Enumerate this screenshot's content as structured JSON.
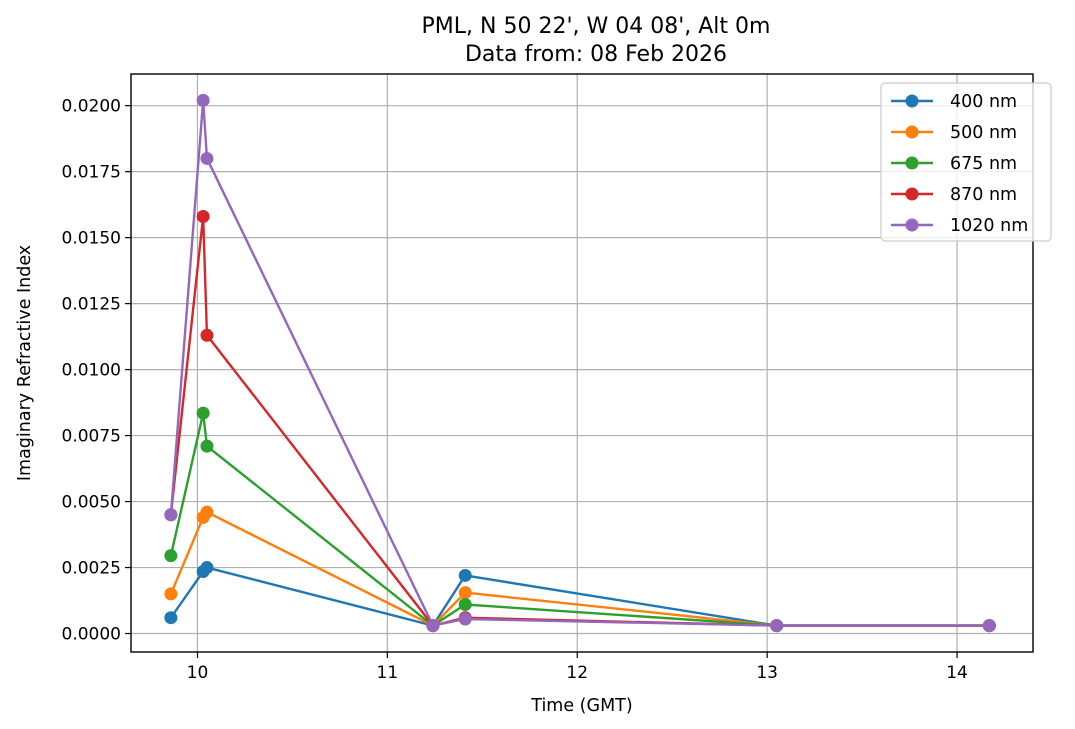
{
  "chart_data": {
    "type": "line",
    "title_line1": "PML, N 50 22', W 04 08', Alt 0m",
    "title_line2": "Data from: 08 Feb 2026",
    "xlabel": "Time (GMT)",
    "ylabel": "Imaginary Refractive Index",
    "xlim": [
      9.65,
      14.4
    ],
    "ylim": [
      -0.0007,
      0.0212
    ],
    "xticks": [
      10,
      11,
      12,
      13,
      14
    ],
    "xtick_labels": [
      "10",
      "11",
      "12",
      "13",
      "14"
    ],
    "yticks": [
      0.0,
      0.0025,
      0.005,
      0.0075,
      0.01,
      0.0125,
      0.015,
      0.0175,
      0.02
    ],
    "ytick_labels": [
      "0.0000",
      "0.0025",
      "0.0050",
      "0.0075",
      "0.0100",
      "0.0125",
      "0.0150",
      "0.0175",
      "0.0200"
    ],
    "grid": true,
    "legend_position": "top-right",
    "x": [
      9.86,
      10.03,
      10.05,
      11.24,
      11.41,
      13.05,
      14.17
    ],
    "series": [
      {
        "name": "400 nm",
        "color": "#1f77b4",
        "values": [
          0.0006,
          0.00235,
          0.0025,
          0.0003,
          0.0022,
          0.0003,
          0.0003
        ]
      },
      {
        "name": "500 nm",
        "color": "#ff7f0e",
        "values": [
          0.0015,
          0.0044,
          0.0046,
          0.0003,
          0.00155,
          0.0003,
          0.0003
        ]
      },
      {
        "name": "675 nm",
        "color": "#2ca02c",
        "values": [
          0.00295,
          0.00835,
          0.0071,
          0.0003,
          0.0011,
          0.0003,
          0.0003
        ]
      },
      {
        "name": "870 nm",
        "color": "#d62728",
        "values": [
          0.0045,
          0.0158,
          0.0113,
          0.0003,
          0.0006,
          0.0003,
          0.0003
        ]
      },
      {
        "name": "1020 nm",
        "color": "#9467bd",
        "values": [
          0.0045,
          0.0202,
          0.018,
          0.0003,
          0.00055,
          0.0003,
          0.0003
        ]
      }
    ]
  }
}
